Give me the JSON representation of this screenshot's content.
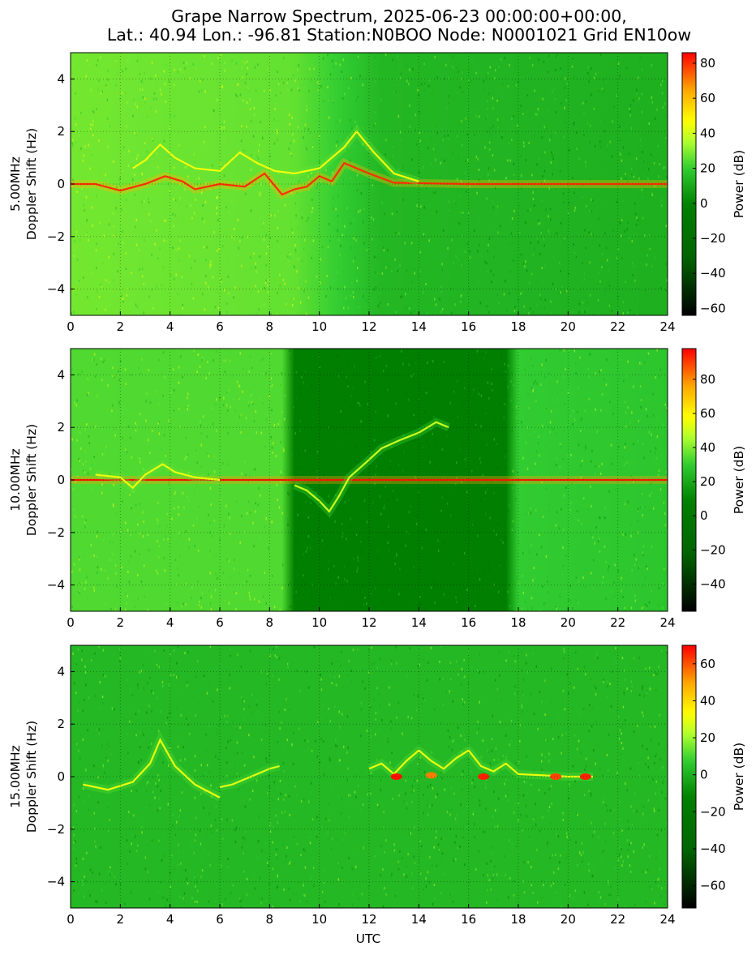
{
  "chart_data": {
    "type": "heatmap",
    "title": [
      "Grape Narrow Spectrum, 2025-06-23 00:00:00+00:00,",
      "Lat.: 40.94 Lon.: -96.81 Station:N0BOO Node: N0001021 Grid EN10ow"
    ],
    "xlabel": "UTC",
    "colorbar_label": "Power (dB)",
    "colormap": [
      "#000000",
      "#006400",
      "#008000",
      "#32CD32",
      "#ADFF2F",
      "#FFFF00",
      "#FFA500",
      "#FF0000"
    ],
    "grid": true,
    "x_ticks": [
      "0",
      "2",
      "4",
      "6",
      "8",
      "10",
      "12",
      "14",
      "16",
      "18",
      "20",
      "22",
      "24"
    ],
    "y_ticks": [
      "4",
      "2",
      "0",
      "−2",
      "−4"
    ],
    "xlim": [
      0,
      24
    ],
    "ylim": [
      -5,
      5
    ],
    "panels": [
      {
        "frequency": "5.00MHz",
        "ylabel_line1": "5.00MHz",
        "ylabel_line2": "Doppler Shift (Hz)",
        "clim": [
          -64,
          86
        ],
        "cbar_ticks": [
          "80",
          "60",
          "40",
          "20",
          "0",
          "−20",
          "−40",
          "−60"
        ],
        "cbar_values": [
          80,
          60,
          40,
          20,
          0,
          -20,
          -40,
          -60
        ],
        "background_db": [
          [
            0,
            28
          ],
          [
            9,
            26
          ],
          [
            12.5,
            14
          ],
          [
            24,
            12
          ]
        ],
        "traces": [
          {
            "x": [
              0,
              1,
              2,
              3,
              3.8,
              4.5,
              5,
              6,
              7,
              7.8,
              8.5,
              9,
              9.5,
              10,
              10.5,
              11,
              11.5,
              12,
              13,
              16,
              20,
              24
            ],
            "y": [
              0,
              0,
              -0.25,
              0,
              0.3,
              0.1,
              -0.2,
              0,
              -0.1,
              0.4,
              -0.4,
              -0.2,
              -0.1,
              0.3,
              0.1,
              0.8,
              0.6,
              0.4,
              0.05,
              0,
              0,
              0
            ],
            "power": 80
          },
          {
            "x": [
              2.5,
              3,
              3.6,
              4.2,
              5,
              6,
              6.8,
              7.5,
              8.2,
              9,
              10,
              11,
              11.5,
              12.2,
              13,
              14
            ],
            "y": [
              0.6,
              0.9,
              1.5,
              1.0,
              0.6,
              0.5,
              1.2,
              0.8,
              0.5,
              0.4,
              0.6,
              1.4,
              2.0,
              1.2,
              0.4,
              0.1
            ],
            "power": 45
          }
        ]
      },
      {
        "frequency": "10.00MHz",
        "ylabel_line1": "10.00MHz",
        "ylabel_line2": "Doppler Shift (Hz)",
        "clim": [
          -56,
          98
        ],
        "cbar_ticks": [
          "80",
          "60",
          "40",
          "20",
          "0",
          "−20",
          "−40"
        ],
        "cbar_values": [
          80,
          60,
          40,
          20,
          0,
          -20,
          -40
        ],
        "background_db": [
          [
            0,
            34
          ],
          [
            8.6,
            34
          ],
          [
            8.7,
            8
          ],
          [
            17.6,
            8
          ],
          [
            17.7,
            30
          ],
          [
            24,
            28
          ]
        ],
        "traces": [
          {
            "x": [
              0,
              24
            ],
            "y": [
              0,
              0
            ],
            "power": 95
          },
          {
            "x": [
              1,
              2,
              2.5,
              3,
              3.7,
              4.2,
              5,
              6
            ],
            "y": [
              0.2,
              0.1,
              -0.3,
              0.2,
              0.6,
              0.3,
              0.1,
              0
            ],
            "power": 55
          },
          {
            "x": [
              9,
              9.5,
              10,
              10.4,
              10.8,
              11.2,
              11.8,
              12.5,
              13.2,
              14,
              14.7,
              15.2
            ],
            "y": [
              -0.2,
              -0.4,
              -0.8,
              -1.2,
              -0.6,
              0.1,
              0.6,
              1.2,
              1.5,
              1.8,
              2.2,
              2.0
            ],
            "power": 50
          }
        ]
      },
      {
        "frequency": "15.00MHz",
        "ylabel_line1": "15.00MHz",
        "ylabel_line2": "Doppler Shift (Hz)",
        "clim": [
          -72,
          70
        ],
        "cbar_ticks": [
          "60",
          "40",
          "20",
          "0",
          "−20",
          "−40",
          "−60"
        ],
        "cbar_values": [
          60,
          40,
          20,
          0,
          -20,
          -40,
          -60
        ],
        "background_db": [
          [
            0,
            2
          ],
          [
            24,
            2
          ]
        ],
        "traces": [
          {
            "x": [
              0.5,
              1.5,
              2.5,
              3.2,
              3.6,
              4.2,
              5,
              6
            ],
            "y": [
              -0.3,
              -0.5,
              -0.2,
              0.5,
              1.4,
              0.4,
              -0.3,
              -0.8
            ],
            "power": 30
          },
          {
            "x": [
              6,
              6.5,
              7,
              7.5,
              8,
              8.4
            ],
            "y": [
              -0.4,
              -0.3,
              -0.1,
              0.1,
              0.3,
              0.4
            ],
            "power": 28
          },
          {
            "x": [
              12,
              12.5,
              13,
              13.5,
              14,
              14.5,
              15,
              15.5,
              16,
              16.5,
              17,
              17.5,
              18,
              19,
              20,
              21
            ],
            "y": [
              0.3,
              0.5,
              0.1,
              0.6,
              1.0,
              0.6,
              0.3,
              0.7,
              1.0,
              0.4,
              0.2,
              0.5,
              0.1,
              0.05,
              0,
              0
            ],
            "power": 30
          }
        ],
        "hotspots": [
          {
            "x": 13.1,
            "y": 0,
            "power": 68
          },
          {
            "x": 14.5,
            "y": 0.05,
            "power": 55
          },
          {
            "x": 16.6,
            "y": 0,
            "power": 66
          },
          {
            "x": 19.5,
            "y": 0,
            "power": 62
          },
          {
            "x": 20.7,
            "y": 0,
            "power": 66
          }
        ]
      }
    ]
  }
}
